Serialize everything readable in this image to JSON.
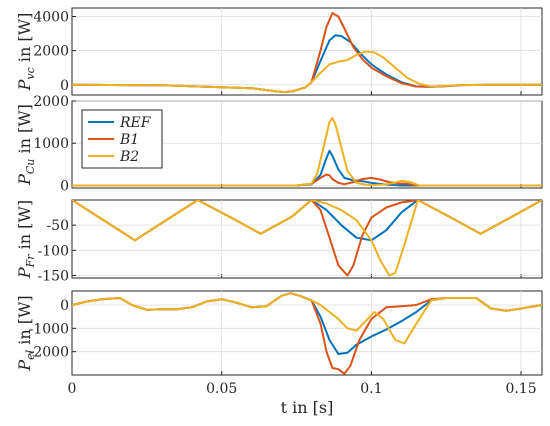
{
  "chart_data": {
    "type": "line",
    "x_axis": {
      "label": "t in [s]",
      "lim": [
        0,
        0.157
      ],
      "ticks": [
        0,
        0.05,
        0.1,
        0.15
      ],
      "tick_labels": [
        "0",
        "0.05",
        "0.1",
        "0.15"
      ]
    },
    "grid": true,
    "legend": {
      "placement": "top-left of panel 2",
      "entries": [
        {
          "name": "REF",
          "color": "#0072BD"
        },
        {
          "name": "B1",
          "color": "#D95319"
        },
        {
          "name": "B2",
          "color": "#EDB120"
        }
      ]
    },
    "panels": [
      {
        "ylabel_main": "P",
        "ylabel_sub": "vc",
        "ylabel_rest": " in [W]",
        "ylim": [
          -600,
          4500
        ],
        "yticks": [
          0,
          2000,
          4000
        ],
        "ytick_labels": [
          "0",
          "2000",
          "4000"
        ],
        "series": [
          {
            "name": "REF",
            "color": "#0072BD",
            "x": [
              0,
              0.03,
              0.06,
              0.068,
              0.071,
              0.074,
              0.078,
              0.08,
              0.083,
              0.086,
              0.088,
              0.09,
              0.093,
              0.096,
              0.1,
              0.105,
              0.11,
              0.115,
              0.12,
              0.125,
              0.13,
              0.14,
              0.157
            ],
            "y": [
              0,
              -30,
              -200,
              -380,
              -430,
              -370,
              -150,
              150,
              1400,
              2600,
              2900,
              2850,
              2500,
              1900,
              1200,
              600,
              150,
              -100,
              -120,
              -80,
              -20,
              0,
              0
            ]
          },
          {
            "name": "B1",
            "color": "#D95319",
            "x": [
              0,
              0.03,
              0.06,
              0.068,
              0.071,
              0.074,
              0.078,
              0.08,
              0.083,
              0.085,
              0.087,
              0.089,
              0.091,
              0.094,
              0.097,
              0.1,
              0.105,
              0.11,
              0.115,
              0.12,
              0.125,
              0.13,
              0.14,
              0.157
            ],
            "y": [
              0,
              -30,
              -200,
              -380,
              -430,
              -370,
              -150,
              150,
              2000,
              3400,
              4200,
              4000,
              3300,
              2200,
              1500,
              1000,
              500,
              100,
              -100,
              -120,
              -80,
              -20,
              0,
              0
            ]
          },
          {
            "name": "B2",
            "color": "#EDB120",
            "x": [
              0,
              0.03,
              0.06,
              0.068,
              0.071,
              0.074,
              0.078,
              0.08,
              0.083,
              0.086,
              0.089,
              0.092,
              0.095,
              0.098,
              0.101,
              0.104,
              0.108,
              0.112,
              0.116,
              0.12,
              0.125,
              0.13,
              0.14,
              0.157
            ],
            "y": [
              0,
              -30,
              -200,
              -380,
              -430,
              -370,
              -150,
              150,
              700,
              1200,
              1350,
              1450,
              1750,
              1950,
              1900,
              1600,
              1000,
              400,
              50,
              -100,
              -60,
              -20,
              0,
              0
            ]
          }
        ]
      },
      {
        "ylabel_main": "P",
        "ylabel_sub": "Cu",
        "ylabel_rest": " in [W]",
        "ylim": [
          -60,
          2000
        ],
        "yticks": [
          0,
          1000,
          2000
        ],
        "ytick_labels": [
          "0",
          "1000",
          "2000"
        ],
        "series": [
          {
            "name": "REF",
            "color": "#0072BD",
            "x": [
              0,
              0.075,
              0.08,
              0.083,
              0.085,
              0.086,
              0.087,
              0.089,
              0.091,
              0.094,
              0.097,
              0.1,
              0.105,
              0.11,
              0.115,
              0.157
            ],
            "y": [
              0,
              0,
              30,
              250,
              650,
              820,
              700,
              380,
              180,
              120,
              100,
              60,
              20,
              0,
              0,
              0
            ]
          },
          {
            "name": "B1",
            "color": "#D95319",
            "x": [
              0,
              0.075,
              0.08,
              0.083,
              0.085,
              0.086,
              0.087,
              0.089,
              0.091,
              0.094,
              0.097,
              0.1,
              0.103,
              0.106,
              0.109,
              0.112,
              0.115,
              0.157
            ],
            "y": [
              0,
              0,
              40,
              180,
              260,
              240,
              150,
              60,
              30,
              80,
              150,
              180,
              140,
              80,
              50,
              40,
              0,
              0
            ]
          },
          {
            "name": "B2",
            "color": "#EDB120",
            "x": [
              0,
              0.075,
              0.08,
              0.082,
              0.084,
              0.086,
              0.087,
              0.088,
              0.09,
              0.092,
              0.095,
              0.098,
              0.101,
              0.104,
              0.107,
              0.11,
              0.113,
              0.116,
              0.157
            ],
            "y": [
              0,
              0,
              40,
              300,
              900,
              1500,
              1600,
              1450,
              900,
              350,
              60,
              20,
              10,
              20,
              50,
              110,
              80,
              0,
              0
            ]
          }
        ]
      },
      {
        "ylabel_main": "P",
        "ylabel_sub": "Fr",
        "ylabel_rest": " in [W]",
        "ylim": [
          -155,
          0
        ],
        "yticks": [
          -50,
          -100,
          -150
        ],
        "ytick_labels": [
          "-50",
          "-100",
          "-150"
        ],
        "series": [
          {
            "name": "REF",
            "color": "#0072BD",
            "x": [
              0,
              0.0105,
              0.021,
              0.0315,
              0.042,
              0.0525,
              0.063,
              0.0735,
              0.08,
              0.085,
              0.09,
              0.095,
              0.1,
              0.105,
              0.11,
              0.1155,
              0.126,
              0.1365,
              0.147,
              0.157
            ],
            "y": [
              0,
              -40,
              -80,
              -40,
              0,
              -33,
              -67,
              -33,
              0,
              -20,
              -50,
              -75,
              -80,
              -60,
              -25,
              0,
              -33,
              -67,
              -33,
              0
            ]
          },
          {
            "name": "B1",
            "color": "#D95319",
            "x": [
              0,
              0.0105,
              0.021,
              0.0315,
              0.042,
              0.0525,
              0.063,
              0.0735,
              0.08,
              0.083,
              0.086,
              0.089,
              0.092,
              0.094,
              0.097,
              0.1,
              0.105,
              0.11,
              0.1155,
              0.126,
              0.1365,
              0.147,
              0.157
            ],
            "y": [
              0,
              -40,
              -80,
              -40,
              0,
              -33,
              -67,
              -33,
              0,
              -20,
              -75,
              -130,
              -150,
              -130,
              -70,
              -35,
              -15,
              -5,
              0,
              -33,
              -67,
              -33,
              0
            ]
          },
          {
            "name": "B2",
            "color": "#EDB120",
            "x": [
              0,
              0.0105,
              0.021,
              0.0315,
              0.042,
              0.0525,
              0.063,
              0.0735,
              0.08,
              0.085,
              0.09,
              0.095,
              0.1,
              0.103,
              0.106,
              0.108,
              0.111,
              0.1155,
              0.126,
              0.1365,
              0.147,
              0.157
            ],
            "y": [
              0,
              -40,
              -80,
              -40,
              0,
              -33,
              -67,
              -33,
              0,
              -7,
              -20,
              -40,
              -80,
              -120,
              -150,
              -145,
              -90,
              0,
              -33,
              -67,
              -33,
              0
            ]
          }
        ]
      },
      {
        "ylabel_main": "P",
        "ylabel_sub": "el",
        "ylabel_rest": " in [W]",
        "ylim": [
          -3000,
          600
        ],
        "yticks": [
          0,
          -1000,
          -2000
        ],
        "ytick_labels": [
          "0",
          "-1000",
          "-2000"
        ],
        "series": [
          {
            "name": "REF",
            "color": "#0072BD",
            "x": [
              0,
              0.005,
              0.01,
              0.016,
              0.02,
              0.025,
              0.03,
              0.035,
              0.04,
              0.045,
              0.05,
              0.055,
              0.06,
              0.065,
              0.07,
              0.073,
              0.076,
              0.08,
              0.083,
              0.086,
              0.089,
              0.092,
              0.095,
              0.1,
              0.105,
              0.11,
              0.115,
              0.12,
              0.125,
              0.13,
              0.135,
              0.14,
              0.145,
              0.15,
              0.157
            ],
            "y": [
              0,
              150,
              250,
              300,
              0,
              -200,
              -180,
              -180,
              -100,
              150,
              250,
              100,
              -100,
              -50,
              400,
              500,
              400,
              200,
              -500,
              -1500,
              -2100,
              -2050,
              -1700,
              -1350,
              -1050,
              -700,
              -300,
              200,
              300,
              300,
              300,
              -150,
              -250,
              -150,
              0
            ]
          },
          {
            "name": "B1",
            "color": "#D95319",
            "x": [
              0,
              0.005,
              0.01,
              0.016,
              0.02,
              0.025,
              0.03,
              0.035,
              0.04,
              0.045,
              0.05,
              0.055,
              0.06,
              0.065,
              0.07,
              0.073,
              0.076,
              0.08,
              0.083,
              0.085,
              0.087,
              0.089,
              0.091,
              0.093,
              0.096,
              0.1,
              0.105,
              0.11,
              0.115,
              0.12,
              0.125,
              0.13,
              0.135,
              0.14,
              0.145,
              0.15,
              0.157
            ],
            "y": [
              0,
              150,
              250,
              300,
              0,
              -200,
              -180,
              -180,
              -100,
              150,
              250,
              100,
              -100,
              -50,
              400,
              500,
              400,
              200,
              -800,
              -2000,
              -2700,
              -2750,
              -2950,
              -2600,
              -1500,
              -600,
              -100,
              -50,
              0,
              250,
              300,
              300,
              300,
              -150,
              -250,
              -150,
              0
            ]
          },
          {
            "name": "B2",
            "color": "#EDB120",
            "x": [
              0,
              0.005,
              0.01,
              0.016,
              0.02,
              0.025,
              0.03,
              0.035,
              0.04,
              0.045,
              0.05,
              0.055,
              0.06,
              0.065,
              0.07,
              0.073,
              0.076,
              0.08,
              0.083,
              0.086,
              0.089,
              0.092,
              0.095,
              0.098,
              0.101,
              0.104,
              0.108,
              0.111,
              0.115,
              0.12,
              0.125,
              0.13,
              0.135,
              0.14,
              0.145,
              0.15,
              0.157
            ],
            "y": [
              0,
              150,
              250,
              300,
              0,
              -200,
              -180,
              -180,
              -100,
              150,
              250,
              100,
              -100,
              -50,
              400,
              500,
              400,
              200,
              0,
              -300,
              -600,
              -1000,
              -1100,
              -700,
              -300,
              -600,
              -1500,
              -1650,
              -800,
              200,
              300,
              300,
              300,
              -150,
              -250,
              -150,
              0
            ]
          }
        ]
      }
    ]
  }
}
